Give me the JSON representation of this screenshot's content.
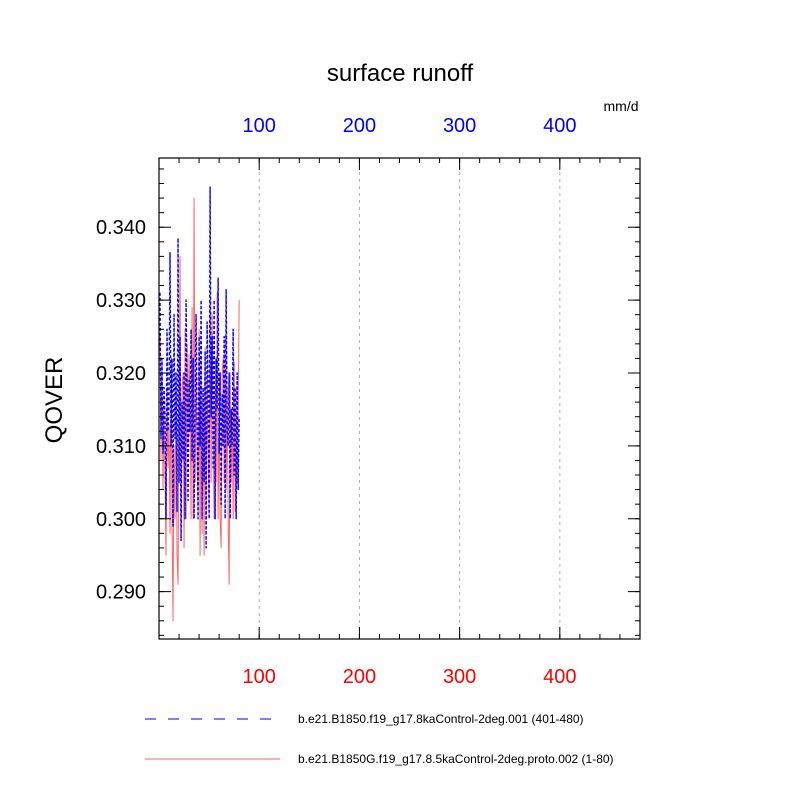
{
  "chart_data": {
    "type": "line",
    "title": "surface runoff",
    "ylabel": "QOVER",
    "units": "mm/d",
    "ylim": [
      0.2835,
      0.3495
    ],
    "xlim": [
      0,
      480
    ],
    "y_ticks": [
      "0.290",
      "0.300",
      "0.310",
      "0.320",
      "0.330",
      "0.340"
    ],
    "x_ticks_top": [
      "100",
      "200",
      "300",
      "400"
    ],
    "x_ticks_bottom": [
      "100",
      "200",
      "300",
      "400"
    ],
    "grid": "vertical dashed at 100, 200, 300, 400",
    "legend_position": "bottom",
    "colors": {
      "top_axis": "#0000ff",
      "bottom_axis": "#ff0000",
      "series_1": "#0000ff",
      "series_2": "#ff6666"
    },
    "series": [
      {
        "name": "b.e21.B1850.f19_g17.8kaControl-2deg.001 (401-480)",
        "style": "dashed",
        "x": [
          1,
          2,
          3,
          4,
          5,
          6,
          7,
          8,
          9,
          10,
          11,
          12,
          13,
          14,
          15,
          16,
          17,
          18,
          19,
          20,
          21,
          22,
          23,
          24,
          25,
          26,
          27,
          28,
          29,
          30,
          31,
          32,
          33,
          34,
          35,
          36,
          37,
          38,
          39,
          40,
          41,
          42,
          43,
          44,
          45,
          46,
          47,
          48,
          49,
          50,
          51,
          52,
          53,
          54,
          55,
          56,
          57,
          58,
          59,
          60,
          61,
          62,
          63,
          64,
          65,
          66,
          67,
          68,
          69,
          70,
          71,
          72,
          73,
          74,
          75,
          76,
          77,
          78,
          79,
          80
        ],
        "values": [
          0.331,
          0.311,
          0.322,
          0.309,
          0.318,
          0.314,
          0.3,
          0.326,
          0.312,
          0.316,
          0.3365,
          0.31,
          0.322,
          0.299,
          0.328,
          0.311,
          0.32,
          0.301,
          0.3385,
          0.305,
          0.325,
          0.297,
          0.316,
          0.308,
          0.32,
          0.3,
          0.33,
          0.318,
          0.3025,
          0.319,
          0.312,
          0.326,
          0.308,
          0.322,
          0.3,
          0.316,
          0.328,
          0.313,
          0.3,
          0.325,
          0.31,
          0.33,
          0.3,
          0.318,
          0.305,
          0.323,
          0.296,
          0.327,
          0.318,
          0.3,
          0.3455,
          0.314,
          0.325,
          0.307,
          0.33,
          0.3,
          0.322,
          0.315,
          0.333,
          0.309,
          0.32,
          0.302,
          0.317,
          0.31,
          0.325,
          0.3,
          0.3315,
          0.312,
          0.31,
          0.32,
          0.3,
          0.315,
          0.31,
          0.326,
          0.306,
          0.318,
          0.3,
          0.32,
          0.304,
          0.314
        ]
      },
      {
        "name": "b.e21.B1850G.f19_g17.8.5kaControl-2deg.proto.002 (1-80)",
        "style": "solid",
        "x": [
          1,
          2,
          3,
          4,
          5,
          6,
          7,
          8,
          9,
          10,
          11,
          12,
          13,
          14,
          15,
          16,
          17,
          18,
          19,
          20,
          21,
          22,
          23,
          24,
          25,
          26,
          27,
          28,
          29,
          30,
          31,
          32,
          33,
          34,
          35,
          36,
          37,
          38,
          39,
          40,
          41,
          42,
          43,
          44,
          45,
          46,
          47,
          48,
          49,
          50,
          51,
          52,
          53,
          54,
          55,
          56,
          57,
          58,
          59,
          60,
          61,
          62,
          63,
          64,
          65,
          66,
          67,
          68,
          69,
          70,
          71,
          72,
          73,
          74,
          75,
          76,
          77,
          78,
          79,
          80
        ],
        "values": [
          0.3255,
          0.308,
          0.32,
          0.304,
          0.315,
          0.306,
          0.295,
          0.318,
          0.307,
          0.313,
          0.298,
          0.322,
          0.3,
          0.286,
          0.31,
          0.3,
          0.32,
          0.295,
          0.291,
          0.316,
          0.336,
          0.297,
          0.318,
          0.32,
          0.296,
          0.326,
          0.3,
          0.324,
          0.31,
          0.3225,
          0.315,
          0.3,
          0.329,
          0.3,
          0.344,
          0.305,
          0.32,
          0.31,
          0.3,
          0.326,
          0.295,
          0.322,
          0.298,
          0.316,
          0.295,
          0.3235,
          0.3,
          0.32,
          0.31,
          0.3,
          0.33,
          0.305,
          0.328,
          0.312,
          0.3,
          0.318,
          0.305,
          0.331,
          0.3,
          0.315,
          0.3,
          0.296,
          0.32,
          0.322,
          0.305,
          0.325,
          0.304,
          0.318,
          0.3,
          0.291,
          0.32,
          0.305,
          0.315,
          0.3,
          0.3215,
          0.301,
          0.318,
          0.305,
          0.314,
          0.33
        ]
      }
    ]
  }
}
